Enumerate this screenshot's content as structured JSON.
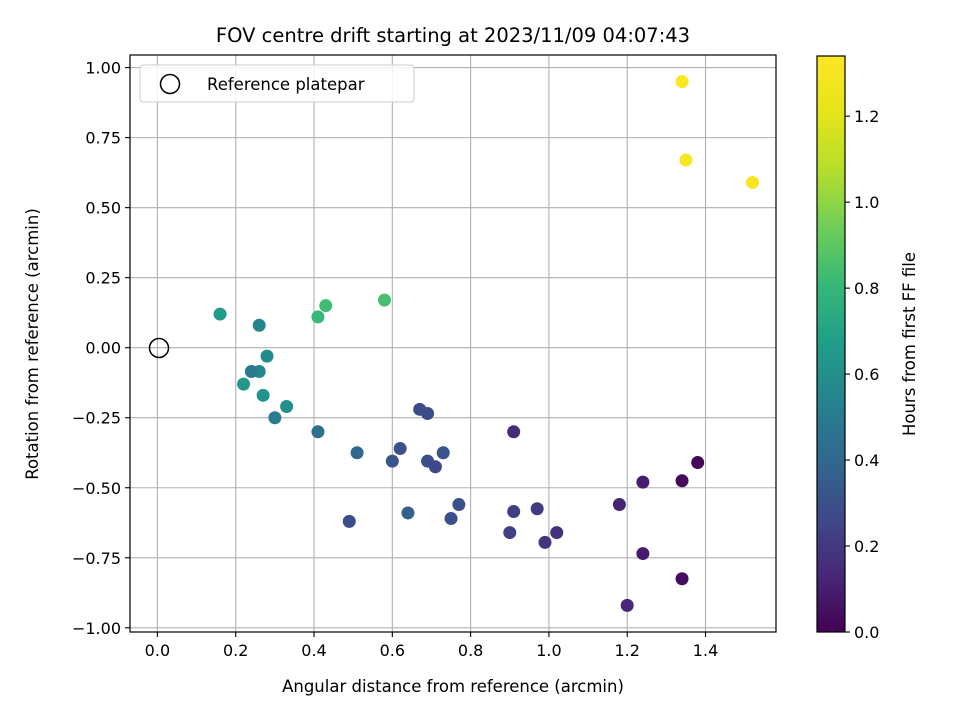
{
  "chart_data": {
    "type": "scatter",
    "title": "FOV centre drift starting at 2023/11/09 04:07:43",
    "xlabel": "Angular distance from reference (arcmin)",
    "ylabel": "Rotation from reference (arcmin)",
    "xlim": [
      -0.07,
      1.58
    ],
    "ylim": [
      -1.015,
      1.045
    ],
    "xticks": [
      "0.0",
      "0.2",
      "0.4",
      "0.6",
      "0.8",
      "1.0",
      "1.2",
      "1.4"
    ],
    "yticks": [
      "1.00",
      "0.75",
      "0.50",
      "0.25",
      "0.00",
      "−0.25",
      "−0.50",
      "−0.75",
      "−1.00"
    ],
    "grid": true,
    "colormap": "viridis",
    "colorbar": {
      "label": "Hours from first FF file",
      "range": [
        0.0,
        1.34
      ],
      "ticks": [
        "0.0",
        "0.2",
        "0.4",
        "0.6",
        "0.8",
        "1.0",
        "1.2"
      ]
    },
    "legend": {
      "location": "upper-left",
      "entries": [
        "Reference platepar"
      ]
    },
    "reference_point": {
      "x": 0.0,
      "y": 0.0
    },
    "points": [
      {
        "x": 1.34,
        "y": 0.95,
        "hours": 1.33
      },
      {
        "x": 1.35,
        "y": 0.67,
        "hours": 1.32
      },
      {
        "x": 1.52,
        "y": 0.59,
        "hours": 1.31
      },
      {
        "x": 0.58,
        "y": 0.17,
        "hours": 0.85
      },
      {
        "x": 0.43,
        "y": 0.15,
        "hours": 0.83
      },
      {
        "x": 0.41,
        "y": 0.11,
        "hours": 0.81
      },
      {
        "x": 0.16,
        "y": 0.12,
        "hours": 0.66
      },
      {
        "x": 0.26,
        "y": 0.08,
        "hours": 0.55
      },
      {
        "x": 0.28,
        "y": -0.03,
        "hours": 0.58
      },
      {
        "x": 0.22,
        "y": -0.13,
        "hours": 0.64
      },
      {
        "x": 0.26,
        "y": -0.085,
        "hours": 0.56
      },
      {
        "x": 0.24,
        "y": -0.085,
        "hours": 0.49
      },
      {
        "x": 0.27,
        "y": -0.17,
        "hours": 0.62
      },
      {
        "x": 0.33,
        "y": -0.21,
        "hours": 0.6
      },
      {
        "x": 0.3,
        "y": -0.25,
        "hours": 0.5
      },
      {
        "x": 0.41,
        "y": -0.3,
        "hours": 0.44
      },
      {
        "x": 0.51,
        "y": -0.375,
        "hours": 0.4
      },
      {
        "x": 0.6,
        "y": -0.405,
        "hours": 0.32
      },
      {
        "x": 0.62,
        "y": -0.36,
        "hours": 0.3
      },
      {
        "x": 0.67,
        "y": -0.22,
        "hours": 0.27
      },
      {
        "x": 0.69,
        "y": -0.235,
        "hours": 0.28
      },
      {
        "x": 0.69,
        "y": -0.405,
        "hours": 0.29
      },
      {
        "x": 0.71,
        "y": -0.425,
        "hours": 0.26
      },
      {
        "x": 0.73,
        "y": -0.375,
        "hours": 0.31
      },
      {
        "x": 0.49,
        "y": -0.62,
        "hours": 0.28
      },
      {
        "x": 0.64,
        "y": -0.59,
        "hours": 0.36
      },
      {
        "x": 0.75,
        "y": -0.61,
        "hours": 0.29
      },
      {
        "x": 0.77,
        "y": -0.56,
        "hours": 0.3
      },
      {
        "x": 0.91,
        "y": -0.3,
        "hours": 0.15
      },
      {
        "x": 0.91,
        "y": -0.585,
        "hours": 0.22
      },
      {
        "x": 0.9,
        "y": -0.66,
        "hours": 0.23
      },
      {
        "x": 0.97,
        "y": -0.575,
        "hours": 0.21
      },
      {
        "x": 0.99,
        "y": -0.695,
        "hours": 0.18
      },
      {
        "x": 1.02,
        "y": -0.66,
        "hours": 0.17
      },
      {
        "x": 1.18,
        "y": -0.56,
        "hours": 0.12
      },
      {
        "x": 1.24,
        "y": -0.48,
        "hours": 0.1
      },
      {
        "x": 1.24,
        "y": -0.735,
        "hours": 0.09
      },
      {
        "x": 1.2,
        "y": -0.92,
        "hours": 0.13
      },
      {
        "x": 1.34,
        "y": -0.475,
        "hours": 0.03
      },
      {
        "x": 1.38,
        "y": -0.41,
        "hours": 0.01
      },
      {
        "x": 1.34,
        "y": -0.825,
        "hours": 0.04
      }
    ]
  }
}
